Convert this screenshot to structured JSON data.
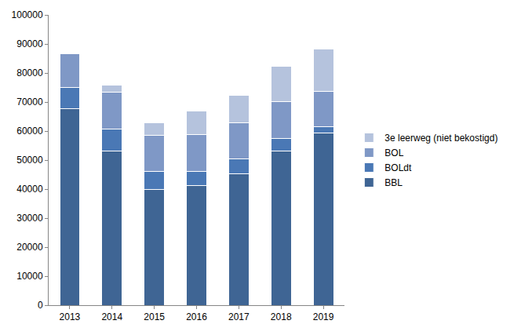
{
  "chart_data": {
    "type": "bar",
    "stacked": true,
    "categories": [
      "2013",
      "2014",
      "2015",
      "2016",
      "2017",
      "2018",
      "2019"
    ],
    "series": [
      {
        "name": "BBL",
        "color": "#3f6594",
        "values": [
          67800,
          53200,
          39800,
          41200,
          45300,
          53200,
          59200
        ]
      },
      {
        "name": "BOLdt",
        "color": "#4a78b5",
        "values": [
          7200,
          7500,
          6200,
          4800,
          5000,
          4100,
          2200
        ]
      },
      {
        "name": "BOL",
        "color": "#7f98c6",
        "values": [
          11700,
          12800,
          12600,
          12800,
          12500,
          12900,
          12300
        ]
      },
      {
        "name": "3e leerweg (niet bekostigd)",
        "color": "#b5c3dd",
        "values": [
          0,
          2200,
          4200,
          8000,
          9500,
          12000,
          14500
        ]
      }
    ],
    "ylim": [
      0,
      100000
    ],
    "yticks": [
      0,
      10000,
      20000,
      30000,
      40000,
      50000,
      60000,
      70000,
      80000,
      90000,
      100000
    ],
    "grid": false,
    "legend": "right"
  }
}
